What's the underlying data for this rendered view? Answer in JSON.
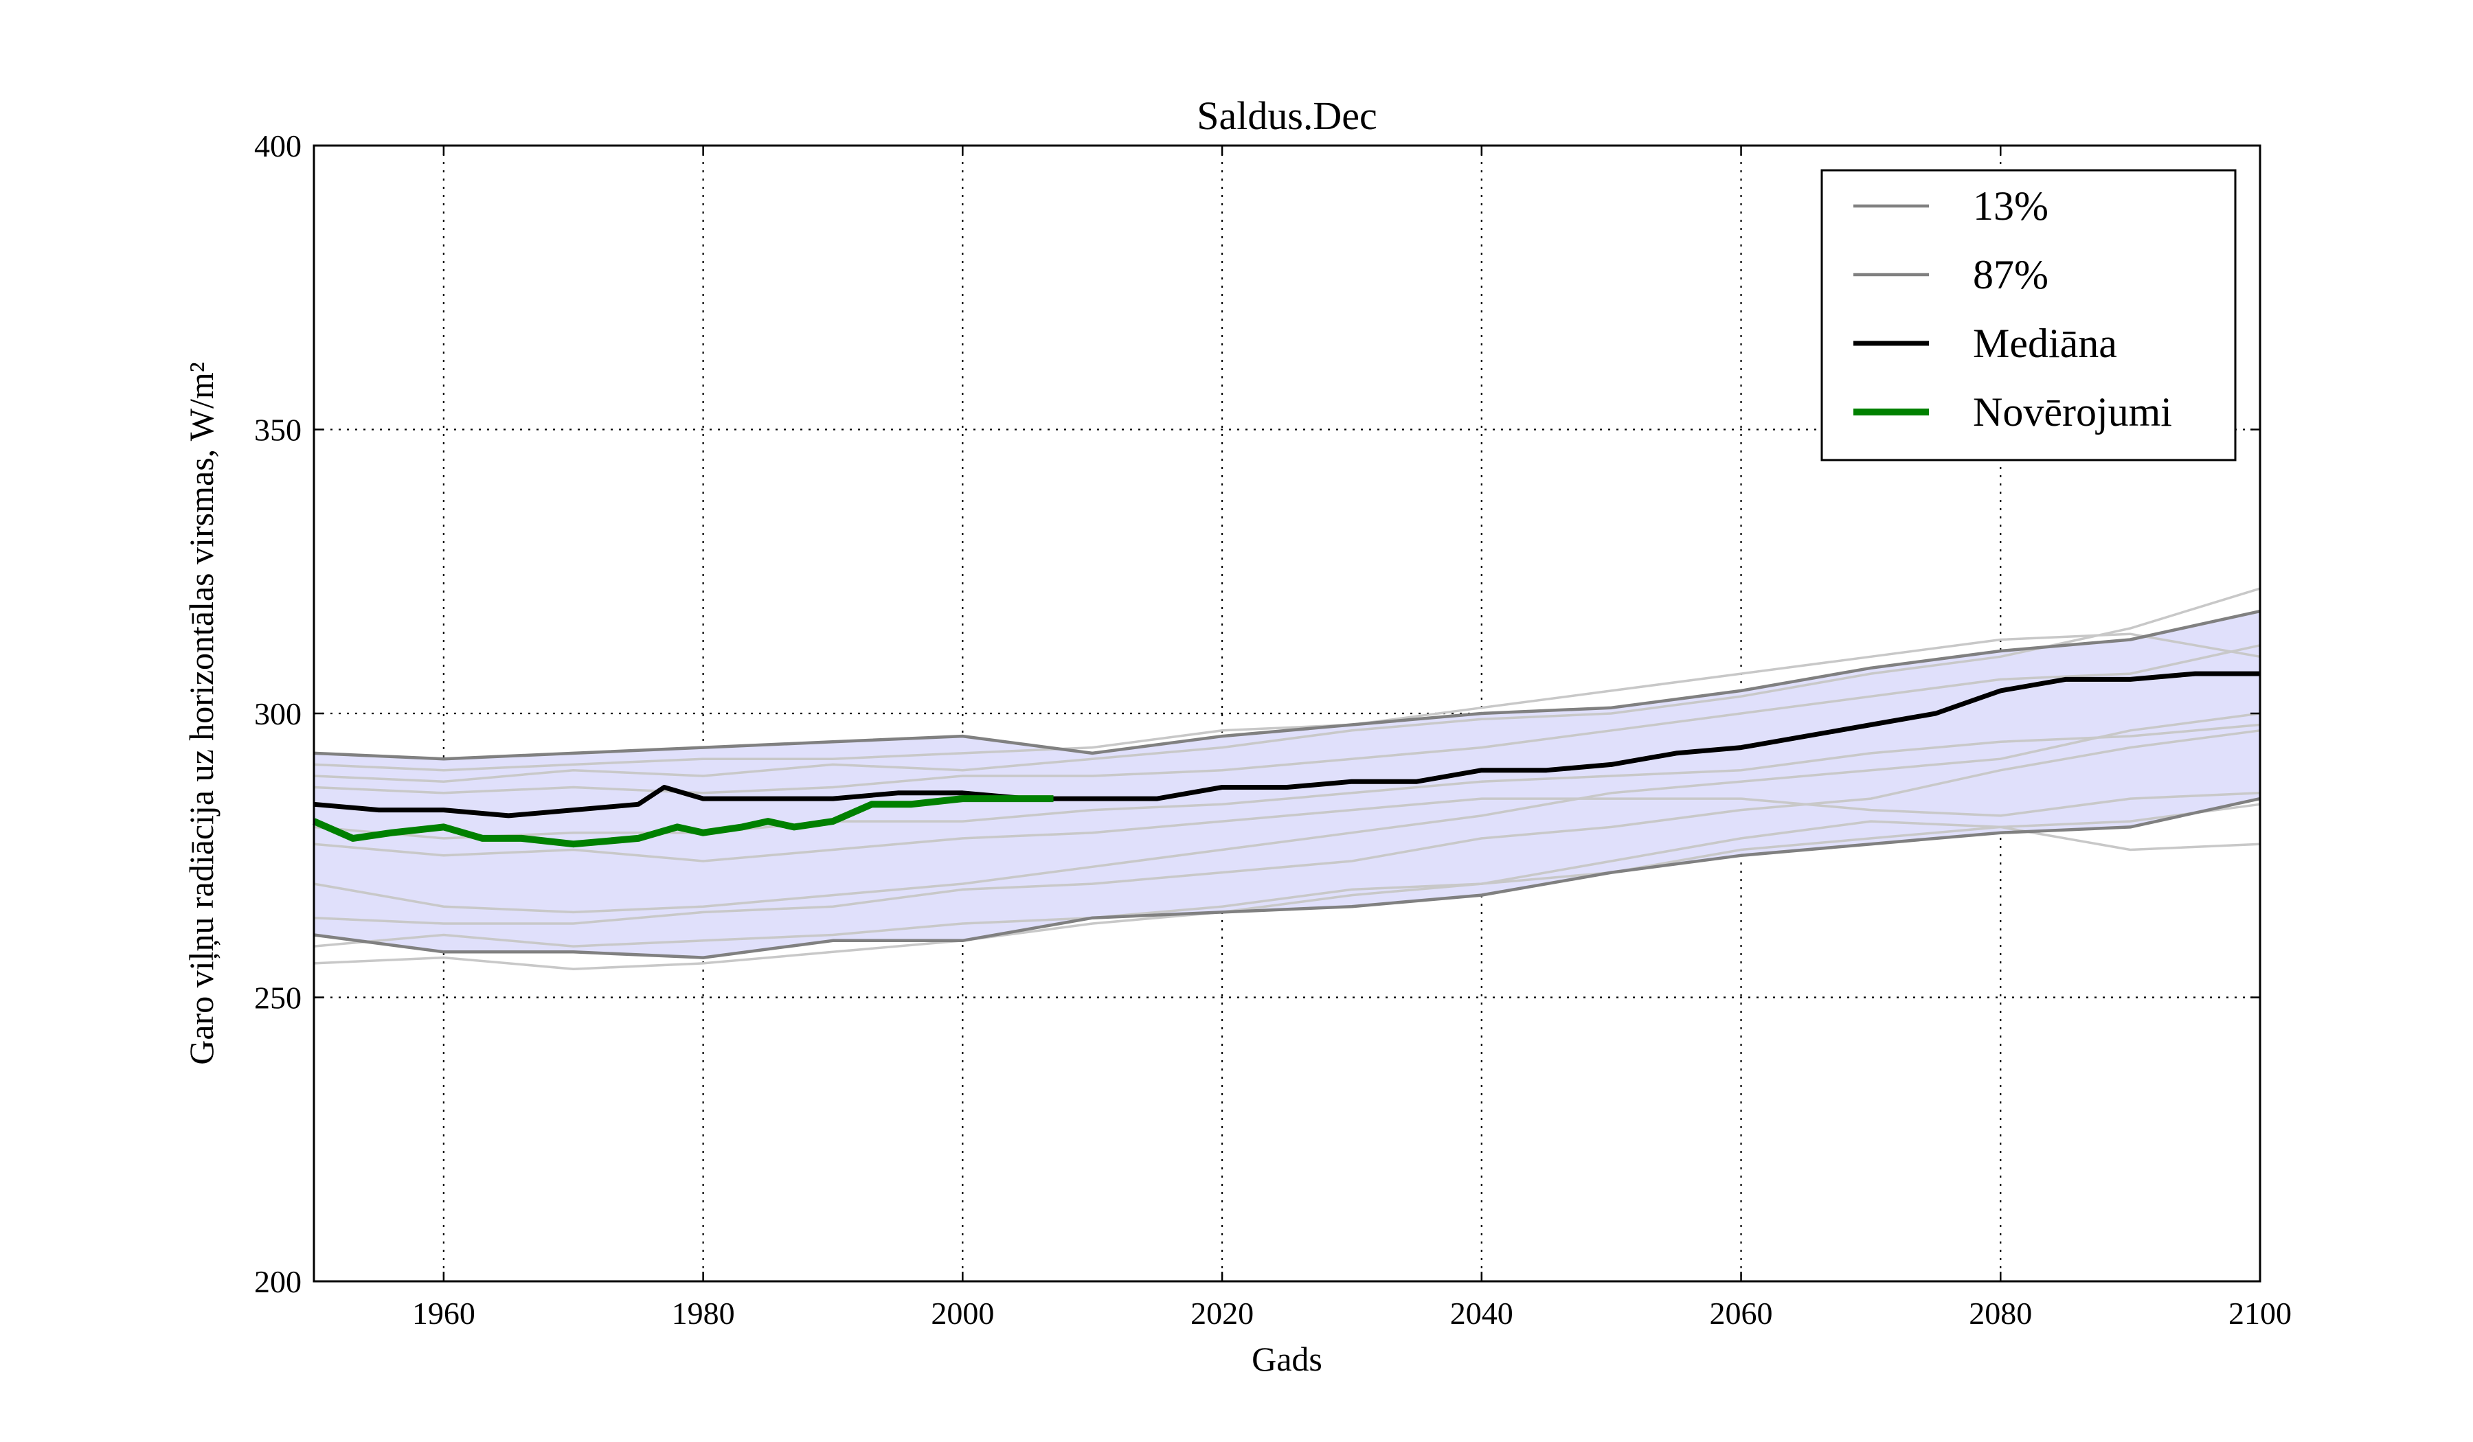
{
  "chart_data": {
    "type": "line",
    "title": "Saldus.Dec",
    "xlabel": "Gads",
    "ylabel": "Garo viļņu radiācija uz horizontālas virsmas, W/m²",
    "xlim": [
      1950,
      2100
    ],
    "ylim": [
      200,
      400
    ],
    "x_ticks": [
      "1960",
      "1980",
      "2000",
      "2020",
      "2040",
      "2060",
      "2080",
      "2100"
    ],
    "y_ticks": [
      "200",
      "250",
      "300",
      "350",
      "400"
    ],
    "grid": true,
    "legend_position": "top-right",
    "band": {
      "fill_color": "#e0e0fb",
      "x": [
        1950,
        1960,
        1970,
        1980,
        1990,
        2000,
        2010,
        2020,
        2030,
        2040,
        2050,
        2060,
        2070,
        2080,
        2090,
        2100
      ],
      "lower": [
        261,
        258,
        258,
        257,
        260,
        260,
        264,
        265,
        266,
        268,
        272,
        275,
        277,
        279,
        280,
        285
      ],
      "upper": [
        293,
        292,
        293,
        294,
        295,
        296,
        293,
        296,
        298,
        300,
        301,
        304,
        308,
        311,
        313,
        318
      ]
    },
    "series": [
      {
        "name": "13%",
        "color": "#808080",
        "x": [
          1950,
          1960,
          1970,
          1980,
          1990,
          2000,
          2010,
          2020,
          2030,
          2040,
          2050,
          2060,
          2070,
          2080,
          2090,
          2100
        ],
        "values": [
          261,
          258,
          258,
          257,
          260,
          260,
          264,
          265,
          266,
          268,
          272,
          275,
          277,
          279,
          280,
          285
        ]
      },
      {
        "name": "87%",
        "color": "#808080",
        "x": [
          1950,
          1960,
          1970,
          1980,
          1990,
          2000,
          2010,
          2020,
          2030,
          2040,
          2050,
          2060,
          2070,
          2080,
          2090,
          2100
        ],
        "values": [
          293,
          292,
          293,
          294,
          295,
          296,
          293,
          296,
          298,
          300,
          301,
          304,
          308,
          311,
          313,
          318
        ]
      },
      {
        "name": "Mediāna",
        "color": "#000000",
        "x": [
          1950,
          1955,
          1960,
          1965,
          1970,
          1975,
          1977,
          1980,
          1985,
          1990,
          1995,
          2000,
          2005,
          2010,
          2015,
          2020,
          2025,
          2030,
          2035,
          2040,
          2045,
          2050,
          2055,
          2060,
          2065,
          2070,
          2075,
          2080,
          2085,
          2090,
          2095,
          2100
        ],
        "values": [
          284,
          283,
          283,
          282,
          283,
          284,
          287,
          285,
          285,
          285,
          286,
          286,
          285,
          285,
          285,
          287,
          287,
          288,
          288,
          290,
          290,
          291,
          293,
          294,
          296,
          298,
          300,
          304,
          306,
          306,
          307,
          307
        ]
      },
      {
        "name": "Novērojumi",
        "color": "#008000",
        "x": [
          1950,
          1953,
          1956,
          1960,
          1963,
          1966,
          1970,
          1975,
          1978,
          1980,
          1983,
          1985,
          1987,
          1990,
          1993,
          1996,
          2000,
          2003,
          2007
        ],
        "values": [
          281,
          278,
          279,
          280,
          278,
          278,
          277,
          278,
          280,
          279,
          280,
          281,
          280,
          281,
          284,
          284,
          285,
          285,
          285
        ]
      }
    ],
    "ensemble": {
      "color": "#c8c8c8",
      "x": [
        1950,
        1960,
        1970,
        1980,
        1990,
        2000,
        2010,
        2020,
        2030,
        2040,
        2050,
        2060,
        2070,
        2080,
        2090,
        2100
      ],
      "members": [
        [
          256,
          257,
          255,
          256,
          258,
          260,
          263,
          265,
          268,
          270,
          272,
          276,
          278,
          280,
          281,
          284
        ],
        [
          259,
          261,
          259,
          260,
          261,
          263,
          264,
          266,
          269,
          270,
          274,
          278,
          281,
          280,
          276,
          277
        ],
        [
          289,
          288,
          290,
          289,
          291,
          290,
          292,
          294,
          297,
          299,
          300,
          303,
          307,
          310,
          315,
          322
        ],
        [
          287,
          286,
          287,
          286,
          287,
          289,
          289,
          290,
          292,
          294,
          297,
          300,
          303,
          306,
          307,
          312
        ],
        [
          270,
          266,
          265,
          266,
          268,
          270,
          273,
          276,
          279,
          282,
          286,
          288,
          290,
          292,
          297,
          300
        ],
        [
          280,
          278,
          279,
          279,
          281,
          281,
          283,
          284,
          286,
          288,
          289,
          290,
          293,
          295,
          296,
          298
        ],
        [
          277,
          275,
          276,
          274,
          276,
          278,
          279,
          281,
          283,
          285,
          285,
          285,
          283,
          282,
          285,
          286
        ],
        [
          264,
          263,
          263,
          265,
          266,
          269,
          270,
          272,
          274,
          278,
          280,
          283,
          285,
          290,
          294,
          297
        ],
        [
          291,
          290,
          291,
          292,
          292,
          293,
          294,
          297,
          298,
          301,
          304,
          307,
          310,
          313,
          314,
          310
        ]
      ]
    }
  }
}
